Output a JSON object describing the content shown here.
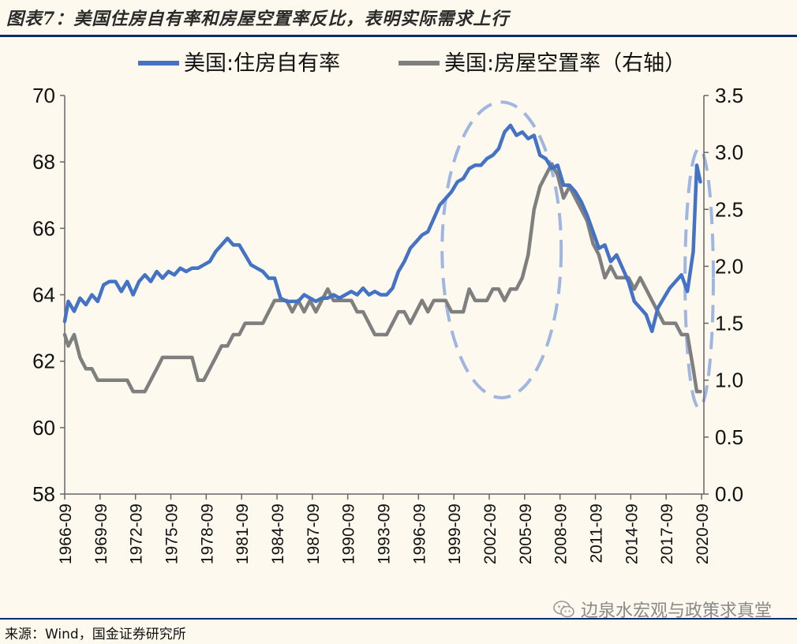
{
  "header": {
    "title": "图表7：美国住房自有率和房屋空置率反比，表明实际需求上行"
  },
  "chart_data": {
    "type": "line",
    "legend_position": "top",
    "grid": false,
    "x_ticks": [
      "1966-09",
      "1969-09",
      "1972-09",
      "1975-09",
      "1978-09",
      "1981-09",
      "1984-09",
      "1987-09",
      "1990-09",
      "1993-09",
      "1996-09",
      "1999-09",
      "2002-09",
      "2005-09",
      "2008-09",
      "2011-09",
      "2014-09",
      "2017-09",
      "2020-09"
    ],
    "x_range": [
      1966.7,
      2020.9
    ],
    "y_left": {
      "min": 58,
      "max": 70,
      "ticks": [
        "58",
        "60",
        "62",
        "64",
        "66",
        "68",
        "70"
      ]
    },
    "y_right": {
      "min": 0.0,
      "max": 3.5,
      "ticks": [
        "0.0",
        "0.5",
        "1.0",
        "1.5",
        "2.0",
        "2.5",
        "3.0",
        "3.5"
      ]
    },
    "series": [
      {
        "name": "美国:住房自有率",
        "axis": "left",
        "color": "#4472c4",
        "points": [
          [
            1966.7,
            63.2
          ],
          [
            1967.0,
            63.8
          ],
          [
            1967.5,
            63.5
          ],
          [
            1968.0,
            63.9
          ],
          [
            1968.5,
            63.7
          ],
          [
            1969.0,
            64.0
          ],
          [
            1969.5,
            63.8
          ],
          [
            1970.0,
            64.3
          ],
          [
            1970.5,
            64.4
          ],
          [
            1971.0,
            64.4
          ],
          [
            1971.5,
            64.1
          ],
          [
            1972.0,
            64.4
          ],
          [
            1972.5,
            64.0
          ],
          [
            1973.0,
            64.4
          ],
          [
            1973.5,
            64.6
          ],
          [
            1974.0,
            64.4
          ],
          [
            1974.5,
            64.7
          ],
          [
            1975.0,
            64.5
          ],
          [
            1975.5,
            64.7
          ],
          [
            1976.0,
            64.6
          ],
          [
            1976.5,
            64.8
          ],
          [
            1977.0,
            64.7
          ],
          [
            1977.5,
            64.8
          ],
          [
            1978.0,
            64.8
          ],
          [
            1978.5,
            64.9
          ],
          [
            1979.0,
            65.0
          ],
          [
            1979.5,
            65.3
          ],
          [
            1980.0,
            65.5
          ],
          [
            1980.5,
            65.7
          ],
          [
            1981.0,
            65.5
          ],
          [
            1981.5,
            65.5
          ],
          [
            1982.0,
            65.2
          ],
          [
            1982.5,
            64.9
          ],
          [
            1983.0,
            64.8
          ],
          [
            1983.5,
            64.7
          ],
          [
            1984.0,
            64.5
          ],
          [
            1984.5,
            64.5
          ],
          [
            1985.0,
            63.9
          ],
          [
            1985.5,
            63.8
          ],
          [
            1986.0,
            63.8
          ],
          [
            1986.5,
            63.8
          ],
          [
            1987.0,
            64.0
          ],
          [
            1987.5,
            63.9
          ],
          [
            1988.0,
            63.8
          ],
          [
            1988.5,
            63.9
          ],
          [
            1989.0,
            63.9
          ],
          [
            1989.5,
            64.0
          ],
          [
            1990.0,
            63.9
          ],
          [
            1990.5,
            64.0
          ],
          [
            1991.0,
            64.1
          ],
          [
            1991.5,
            64.0
          ],
          [
            1992.0,
            64.2
          ],
          [
            1992.5,
            64.0
          ],
          [
            1993.0,
            64.1
          ],
          [
            1993.5,
            64.0
          ],
          [
            1994.0,
            64.0
          ],
          [
            1994.5,
            64.2
          ],
          [
            1995.0,
            64.7
          ],
          [
            1995.5,
            65.0
          ],
          [
            1996.0,
            65.4
          ],
          [
            1996.5,
            65.6
          ],
          [
            1997.0,
            65.8
          ],
          [
            1997.5,
            65.9
          ],
          [
            1998.0,
            66.3
          ],
          [
            1998.5,
            66.7
          ],
          [
            1999.0,
            66.9
          ],
          [
            1999.5,
            67.1
          ],
          [
            2000.0,
            67.4
          ],
          [
            2000.5,
            67.5
          ],
          [
            2001.0,
            67.8
          ],
          [
            2001.5,
            67.9
          ],
          [
            2002.0,
            67.9
          ],
          [
            2002.5,
            68.1
          ],
          [
            2003.0,
            68.2
          ],
          [
            2003.5,
            68.4
          ],
          [
            2004.0,
            68.9
          ],
          [
            2004.5,
            69.1
          ],
          [
            2005.0,
            68.8
          ],
          [
            2005.5,
            68.9
          ],
          [
            2006.0,
            68.7
          ],
          [
            2006.5,
            68.8
          ],
          [
            2007.0,
            68.2
          ],
          [
            2007.5,
            68.1
          ],
          [
            2008.0,
            67.8
          ],
          [
            2008.5,
            67.9
          ],
          [
            2009.0,
            67.3
          ],
          [
            2009.5,
            67.3
          ],
          [
            2010.0,
            67.1
          ],
          [
            2010.5,
            66.8
          ],
          [
            2011.0,
            66.4
          ],
          [
            2011.5,
            65.9
          ],
          [
            2012.0,
            65.4
          ],
          [
            2012.5,
            65.5
          ],
          [
            2013.0,
            65.0
          ],
          [
            2013.5,
            65.2
          ],
          [
            2014.0,
            64.8
          ],
          [
            2014.5,
            64.4
          ],
          [
            2015.0,
            63.8
          ],
          [
            2015.5,
            63.6
          ],
          [
            2016.0,
            63.4
          ],
          [
            2016.5,
            62.9
          ],
          [
            2017.0,
            63.6
          ],
          [
            2017.5,
            63.9
          ],
          [
            2018.0,
            64.2
          ],
          [
            2018.5,
            64.4
          ],
          [
            2019.0,
            64.6
          ],
          [
            2019.5,
            64.1
          ],
          [
            2020.0,
            65.3
          ],
          [
            2020.3,
            67.9
          ],
          [
            2020.6,
            67.4
          ]
        ]
      },
      {
        "name": "美国:房屋空置率（右轴）",
        "axis": "right",
        "color": "#7f7f7f",
        "points": [
          [
            1966.7,
            1.4
          ],
          [
            1967.0,
            1.3
          ],
          [
            1967.5,
            1.4
          ],
          [
            1968.0,
            1.2
          ],
          [
            1968.5,
            1.1
          ],
          [
            1969.0,
            1.1
          ],
          [
            1969.5,
            1.0
          ],
          [
            1970.0,
            1.0
          ],
          [
            1970.5,
            1.0
          ],
          [
            1971.0,
            1.0
          ],
          [
            1971.5,
            1.0
          ],
          [
            1972.0,
            1.0
          ],
          [
            1972.5,
            0.9
          ],
          [
            1973.0,
            0.9
          ],
          [
            1973.5,
            0.9
          ],
          [
            1974.0,
            1.0
          ],
          [
            1974.5,
            1.1
          ],
          [
            1975.0,
            1.2
          ],
          [
            1975.5,
            1.2
          ],
          [
            1976.0,
            1.2
          ],
          [
            1976.5,
            1.2
          ],
          [
            1977.0,
            1.2
          ],
          [
            1977.5,
            1.2
          ],
          [
            1978.0,
            1.0
          ],
          [
            1978.5,
            1.0
          ],
          [
            1979.0,
            1.1
          ],
          [
            1979.5,
            1.2
          ],
          [
            1980.0,
            1.3
          ],
          [
            1980.5,
            1.3
          ],
          [
            1981.0,
            1.4
          ],
          [
            1981.5,
            1.4
          ],
          [
            1982.0,
            1.5
          ],
          [
            1982.5,
            1.5
          ],
          [
            1983.0,
            1.5
          ],
          [
            1983.5,
            1.5
          ],
          [
            1984.0,
            1.6
          ],
          [
            1984.5,
            1.7
          ],
          [
            1985.0,
            1.7
          ],
          [
            1985.5,
            1.7
          ],
          [
            1986.0,
            1.6
          ],
          [
            1986.5,
            1.7
          ],
          [
            1987.0,
            1.6
          ],
          [
            1987.5,
            1.7
          ],
          [
            1988.0,
            1.6
          ],
          [
            1988.5,
            1.7
          ],
          [
            1989.0,
            1.8
          ],
          [
            1989.5,
            1.7
          ],
          [
            1990.0,
            1.7
          ],
          [
            1990.5,
            1.7
          ],
          [
            1991.0,
            1.7
          ],
          [
            1991.5,
            1.6
          ],
          [
            1992.0,
            1.6
          ],
          [
            1992.5,
            1.5
          ],
          [
            1993.0,
            1.4
          ],
          [
            1993.5,
            1.4
          ],
          [
            1994.0,
            1.4
          ],
          [
            1994.5,
            1.5
          ],
          [
            1995.0,
            1.6
          ],
          [
            1995.5,
            1.6
          ],
          [
            1996.0,
            1.5
          ],
          [
            1996.5,
            1.6
          ],
          [
            1997.0,
            1.7
          ],
          [
            1997.5,
            1.6
          ],
          [
            1998.0,
            1.7
          ],
          [
            1998.5,
            1.7
          ],
          [
            1999.0,
            1.7
          ],
          [
            1999.5,
            1.6
          ],
          [
            2000.0,
            1.6
          ],
          [
            2000.5,
            1.6
          ],
          [
            2001.0,
            1.8
          ],
          [
            2001.5,
            1.7
          ],
          [
            2002.0,
            1.7
          ],
          [
            2002.5,
            1.7
          ],
          [
            2003.0,
            1.8
          ],
          [
            2003.5,
            1.8
          ],
          [
            2004.0,
            1.7
          ],
          [
            2004.5,
            1.8
          ],
          [
            2005.0,
            1.8
          ],
          [
            2005.5,
            1.9
          ],
          [
            2006.0,
            2.1
          ],
          [
            2006.5,
            2.5
          ],
          [
            2007.0,
            2.7
          ],
          [
            2007.5,
            2.8
          ],
          [
            2008.0,
            2.9
          ],
          [
            2008.5,
            2.8
          ],
          [
            2009.0,
            2.6
          ],
          [
            2009.5,
            2.7
          ],
          [
            2010.0,
            2.6
          ],
          [
            2010.5,
            2.5
          ],
          [
            2011.0,
            2.4
          ],
          [
            2011.5,
            2.2
          ],
          [
            2012.0,
            2.1
          ],
          [
            2012.5,
            1.9
          ],
          [
            2013.0,
            2.0
          ],
          [
            2013.5,
            1.9
          ],
          [
            2014.0,
            1.9
          ],
          [
            2014.5,
            1.9
          ],
          [
            2015.0,
            1.8
          ],
          [
            2015.5,
            1.9
          ],
          [
            2016.0,
            1.8
          ],
          [
            2016.5,
            1.7
          ],
          [
            2017.0,
            1.6
          ],
          [
            2017.5,
            1.5
          ],
          [
            2018.0,
            1.5
          ],
          [
            2018.5,
            1.5
          ],
          [
            2019.0,
            1.4
          ],
          [
            2019.5,
            1.4
          ],
          [
            2020.0,
            1.1
          ],
          [
            2020.3,
            0.9
          ],
          [
            2020.6,
            0.9
          ]
        ]
      }
    ],
    "annotations": [
      {
        "type": "dashed-ellipse",
        "color": "#9fb6e0",
        "x_range": [
          1998.7,
          2008.8
        ],
        "y_left_range": [
          60.9,
          69.8
        ]
      },
      {
        "type": "dashed-ellipse",
        "color": "#9fb6e0",
        "x_range": [
          2019.3,
          2021.7
        ],
        "y_left_range": [
          60.6,
          68.4
        ]
      }
    ]
  },
  "footer": {
    "source": "来源：Wind，国金证券研究所",
    "watermark": "边泉水宏观与政策求真堂",
    "watermark_icon": "wechat-icon"
  }
}
